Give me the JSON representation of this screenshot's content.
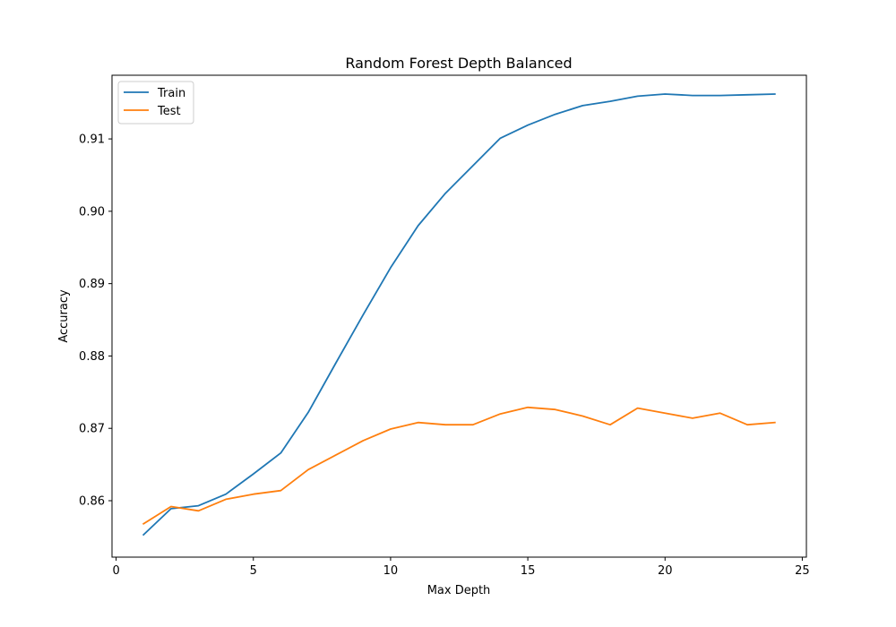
{
  "chart_data": {
    "type": "line",
    "title": "Random Forest Depth Balanced",
    "xlabel": "Max Depth",
    "ylabel": "Accuracy",
    "xlim": [
      -0.15,
      25.15
    ],
    "ylim": [
      0.8522,
      0.9188
    ],
    "xticks": [
      0,
      5,
      10,
      15,
      20,
      25
    ],
    "xtick_labels": [
      "0",
      "5",
      "10",
      "15",
      "20",
      "25"
    ],
    "yticks": [
      0.86,
      0.87,
      0.88,
      0.89,
      0.9,
      0.91
    ],
    "ytick_labels": [
      "0.86",
      "0.87",
      "0.88",
      "0.89",
      "0.90",
      "0.91"
    ],
    "grid": false,
    "legend_position": "top-left",
    "x": [
      1,
      2,
      3,
      4,
      5,
      6,
      7,
      8,
      9,
      10,
      11,
      12,
      13,
      14,
      15,
      16,
      17,
      18,
      19,
      20,
      21,
      22,
      23,
      24
    ],
    "series": [
      {
        "name": "Train",
        "color": "#1f77b4",
        "values": [
          0.8553,
          0.8589,
          0.8593,
          0.8609,
          0.8637,
          0.8666,
          0.8722,
          0.879,
          0.8857,
          0.8922,
          0.898,
          0.9025,
          0.9063,
          0.9101,
          0.9119,
          0.9134,
          0.9146,
          0.9152,
          0.9159,
          0.9162,
          0.916,
          0.916,
          0.9161,
          0.9162
        ]
      },
      {
        "name": "Test",
        "color": "#ff7f0e",
        "values": [
          0.8568,
          0.8592,
          0.8586,
          0.8602,
          0.8609,
          0.8614,
          0.8643,
          0.8663,
          0.8683,
          0.8699,
          0.8708,
          0.8705,
          0.8705,
          0.872,
          0.8729,
          0.8726,
          0.8717,
          0.8705,
          0.8728,
          0.8721,
          0.8714,
          0.8721,
          0.8705,
          0.8708
        ]
      }
    ]
  }
}
